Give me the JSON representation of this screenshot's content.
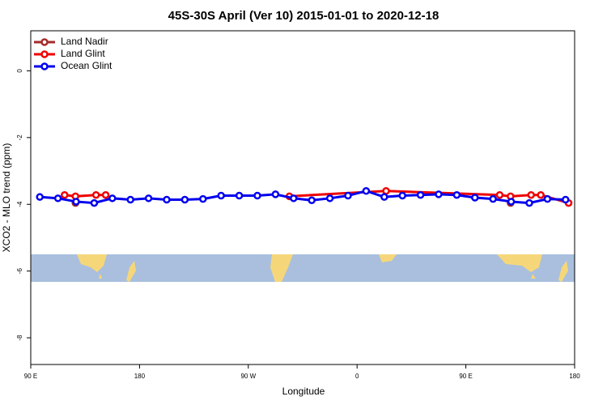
{
  "chart_data": {
    "type": "line",
    "title": "45S-30S April (Ver 10)   2015-01-01 to 2020-12-18",
    "x_label": "Longitude",
    "y_label": "XCO2 - MLO trend (ppm)",
    "xlim": [
      90,
      540
    ],
    "xticks": [
      {
        "value": 90,
        "label": "90 E"
      },
      {
        "value": 180,
        "label": "180"
      },
      {
        "value": 270,
        "label": "90 W"
      },
      {
        "value": 360,
        "label": "0"
      },
      {
        "value": 450,
        "label": "90 E"
      },
      {
        "value": 540,
        "label": "180"
      }
    ],
    "ylim": [
      -8.8,
      1.2
    ],
    "yticks": [
      0,
      -2,
      -4,
      -6,
      -8
    ],
    "legend": "top-left",
    "series": [
      {
        "name": "Land Nadir",
        "color": "#a52a2a",
        "x": [
          127,
          294,
          487
        ],
        "values": [
          -3.96,
          null,
          -3.96
        ]
      },
      {
        "name": "Land Glint",
        "color": "#ee0000",
        "x": [
          118,
          127,
          144,
          152,
          175,
          304,
          384,
          478,
          487,
          504,
          512,
          535
        ],
        "values": [
          -3.72,
          -3.76,
          -3.72,
          -3.72,
          null,
          -3.76,
          -3.6,
          -3.72,
          -3.76,
          -3.72,
          -3.72,
          -3.96
        ]
      },
      {
        "name": "Ocean Glint",
        "color": "#0000ee",
        "x": [
          97.5,
          112.5,
          127.5,
          142.5,
          157.5,
          172.5,
          187.5,
          202.5,
          217.5,
          232.5,
          247.5,
          262.5,
          277.5,
          292.5,
          307.5,
          322.5,
          337.5,
          352.5,
          367.5,
          382.5,
          397.5,
          412.5,
          427.5,
          442.5,
          457.5,
          472.5,
          487.5,
          502.5,
          517.5,
          532.5
        ],
        "values": [
          -3.78,
          -3.82,
          -3.92,
          -3.96,
          -3.82,
          -3.86,
          -3.82,
          -3.86,
          -3.86,
          -3.84,
          -3.74,
          -3.74,
          -3.74,
          -3.7,
          -3.82,
          -3.88,
          -3.82,
          -3.74,
          -3.6,
          -3.78,
          -3.74,
          -3.72,
          -3.7,
          -3.72,
          -3.8,
          -3.84,
          -3.92,
          -3.96,
          -3.84,
          -3.86
        ]
      }
    ]
  }
}
